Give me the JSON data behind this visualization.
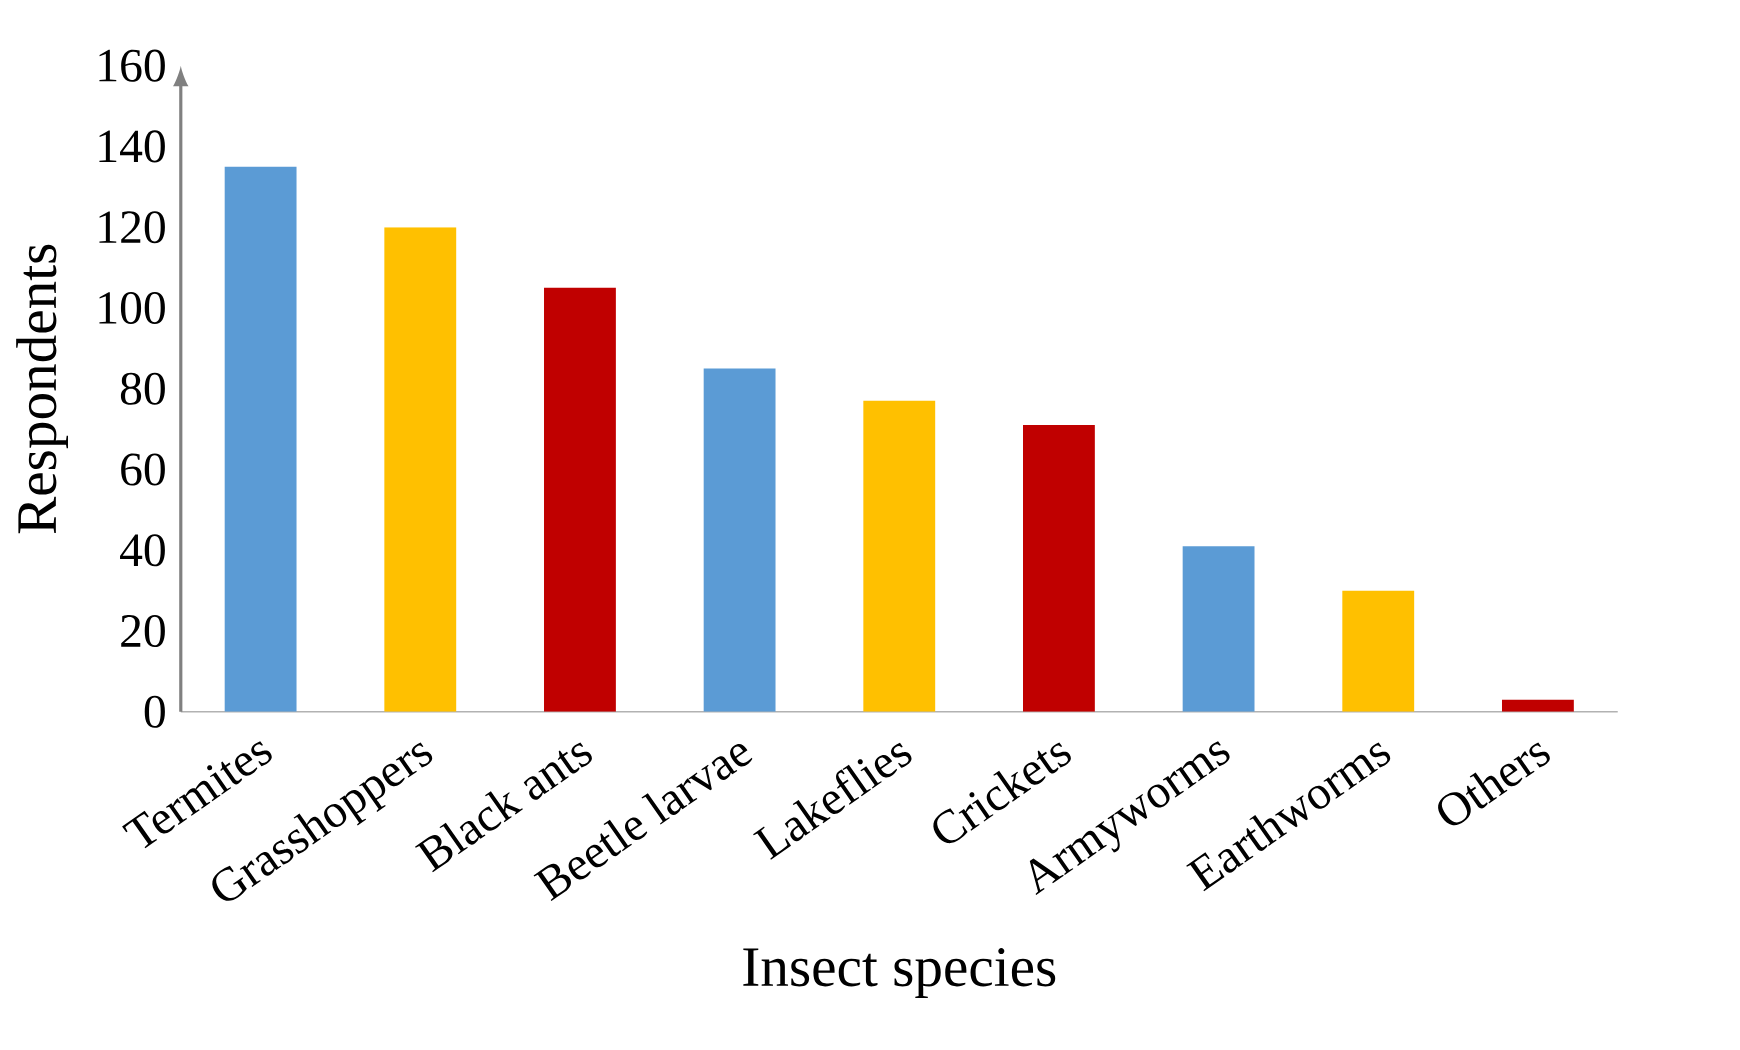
{
  "chart_data": {
    "type": "bar",
    "xlabel": "Insect species",
    "ylabel": "Respondents",
    "categories": [
      "Termites",
      "Grasshoppers",
      "Black ants",
      "Beetle larvae",
      "Lakeflies",
      "Crickets",
      "Armyworms",
      "Earthworms",
      "Others"
    ],
    "values": [
      135,
      120,
      105,
      85,
      77,
      71,
      41,
      30,
      3
    ],
    "colors": [
      "#5b9bd5",
      "#ffc000",
      "#c00000",
      "#5b9bd5",
      "#ffc000",
      "#c00000",
      "#5b9bd5",
      "#ffc000",
      "#c00000"
    ],
    "ylim": [
      0,
      160
    ],
    "yticks": [
      0,
      20,
      40,
      60,
      80,
      100,
      120,
      140,
      160
    ]
  }
}
